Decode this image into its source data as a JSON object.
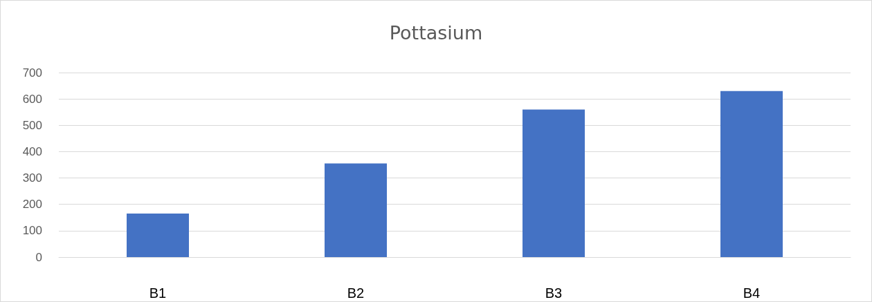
{
  "chart_data": {
    "type": "bar",
    "title": "Pottasium",
    "categories": [
      "B1",
      "B2",
      "B3",
      "B4"
    ],
    "values": [
      165,
      355,
      560,
      630
    ],
    "color": "#4472c4",
    "ylim": [
      0,
      700
    ],
    "yticks": [
      0,
      100,
      200,
      300,
      400,
      500,
      600,
      700
    ],
    "grid": "y"
  }
}
